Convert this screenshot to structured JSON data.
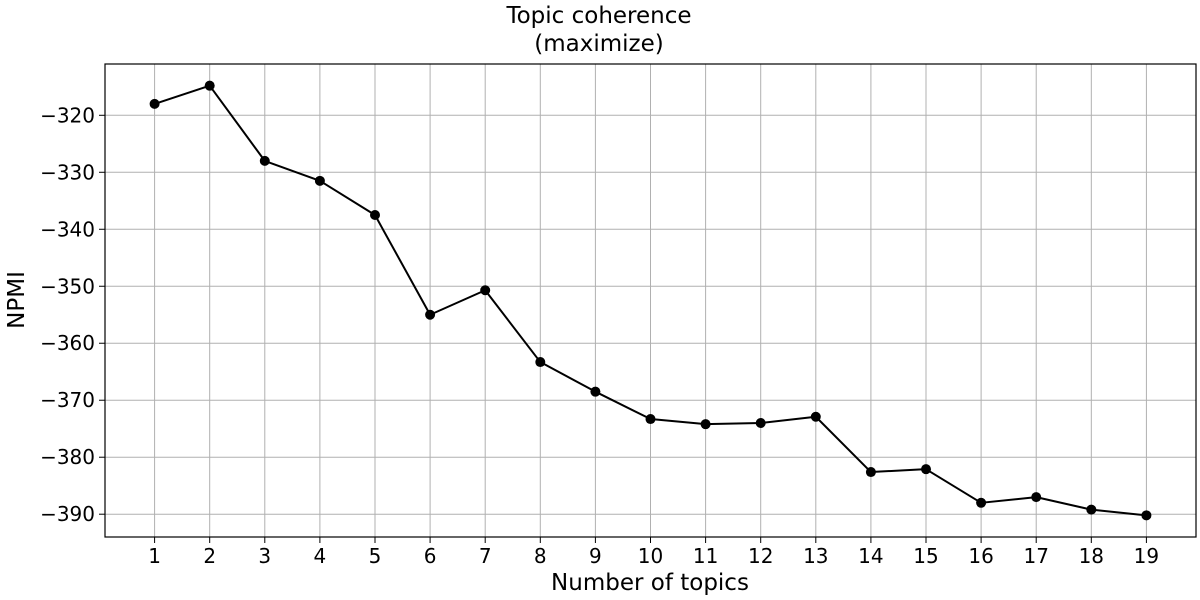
{
  "chart_data": {
    "type": "line",
    "title_lines": [
      "Topic coherence",
      "(maximize)"
    ],
    "xlabel": "Number of topics",
    "ylabel": "NPMI",
    "x": [
      1,
      2,
      3,
      4,
      5,
      6,
      7,
      8,
      9,
      10,
      11,
      12,
      13,
      14,
      15,
      16,
      17,
      18,
      19
    ],
    "x_ticks": [
      "1",
      "2",
      "3",
      "4",
      "5",
      "6",
      "7",
      "8",
      "9",
      "10",
      "11",
      "12",
      "13",
      "14",
      "15",
      "16",
      "17",
      "18",
      "19"
    ],
    "y_ticks": [
      -320,
      -330,
      -340,
      -350,
      -360,
      -370,
      -380,
      -390
    ],
    "y_tick_labels": [
      "−320",
      "−330",
      "−340",
      "−350",
      "−360",
      "−370",
      "−380",
      "−390"
    ],
    "xlim": [
      0.1,
      19.9
    ],
    "ylim": [
      -394,
      -311
    ],
    "series": [
      {
        "values": [
          -318.0,
          -314.8,
          -328.0,
          -331.5,
          -337.5,
          -355.0,
          -350.7,
          -363.3,
          -368.5,
          -373.3,
          -374.2,
          -374.0,
          -372.9,
          -382.6,
          -382.1,
          -388.0,
          -387.0,
          -389.2,
          -390.2
        ],
        "color": "#000000",
        "marker": "circle"
      }
    ],
    "grid": true,
    "grid_color": "#b0b0b0",
    "legend": false
  }
}
